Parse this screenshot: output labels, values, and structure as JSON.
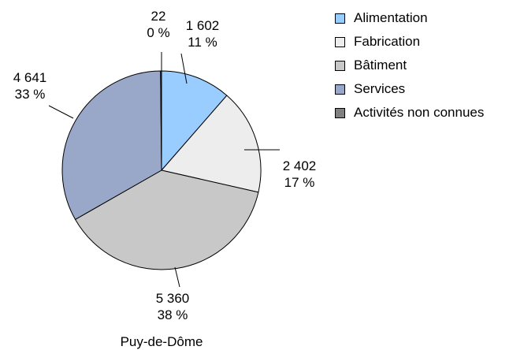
{
  "chart_data": {
    "type": "pie",
    "title": "Puy-de-Dôme",
    "slices": [
      {
        "label": "Alimentation",
        "value": 1602,
        "value_text": "1 602",
        "percent_text": "11 %",
        "color": "#99CCFF"
      },
      {
        "label": "Fabrication",
        "value": 2402,
        "value_text": "2 402",
        "percent_text": "17 %",
        "color": "#EDEDED"
      },
      {
        "label": "Bâtiment",
        "value": 5360,
        "value_text": "5 360",
        "percent_text": "38 %",
        "color": "#C8C8C8"
      },
      {
        "label": "Services",
        "value": 4641,
        "value_text": "4 641",
        "percent_text": "33 %",
        "color": "#99A8C8"
      },
      {
        "label": "Activités non connues",
        "value": 22,
        "value_text": "22",
        "percent_text": "0 %",
        "color": "#808080"
      }
    ],
    "legend_position": "right"
  }
}
